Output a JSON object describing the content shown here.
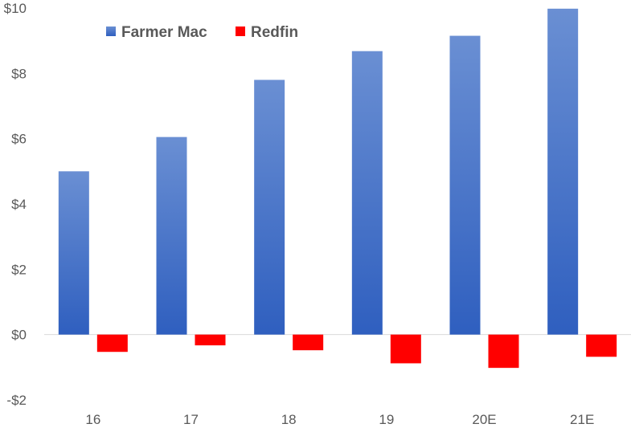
{
  "chart_data": {
    "type": "bar",
    "categories": [
      "16",
      "17",
      "18",
      "19",
      "20E",
      "21E"
    ],
    "series": [
      {
        "name": "Farmer Mac",
        "values": [
          5.0,
          6.05,
          7.8,
          8.68,
          9.15,
          9.98
        ],
        "color": "#4472c4"
      },
      {
        "name": "Redfin",
        "values": [
          -0.53,
          -0.33,
          -0.48,
          -0.88,
          -1.02,
          -0.68
        ],
        "color": "#ff0000"
      }
    ],
    "yticks": [
      -2,
      0,
      2,
      4,
      6,
      8,
      10
    ],
    "ytick_labels": [
      "-$2",
      "$0",
      "$2",
      "$4",
      "$6",
      "$8",
      "$10"
    ],
    "ylim": [
      -2,
      10
    ],
    "title": "",
    "xlabel": "",
    "ylabel": "",
    "grid": false,
    "legend": {
      "position": "top-left"
    }
  }
}
